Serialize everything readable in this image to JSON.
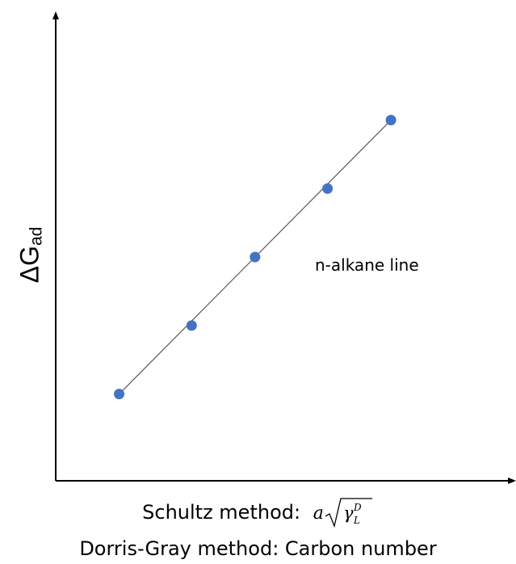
{
  "chart_data": {
    "type": "scatter",
    "title": "",
    "ylabel": {
      "main": "ΔG",
      "sub": "ad"
    },
    "xlabels": [
      {
        "method": "Schultz method:",
        "expr": "a √(γ_L^D)"
      },
      {
        "method": "Dorris-Gray method:",
        "expr": "Carbon number"
      }
    ],
    "annotation": "n-alkane line",
    "xlim": [
      0,
      10
    ],
    "ylim": [
      0,
      10
    ],
    "points": [
      {
        "x": 1.4,
        "y": 1.9
      },
      {
        "x": 3.0,
        "y": 3.4
      },
      {
        "x": 4.4,
        "y": 4.9
      },
      {
        "x": 6.0,
        "y": 6.4
      },
      {
        "x": 7.4,
        "y": 7.9
      }
    ],
    "fit_line": true,
    "grid": false,
    "colors": {
      "marker": "#4472c4",
      "line": "#595959",
      "axis": "#000000"
    }
  }
}
